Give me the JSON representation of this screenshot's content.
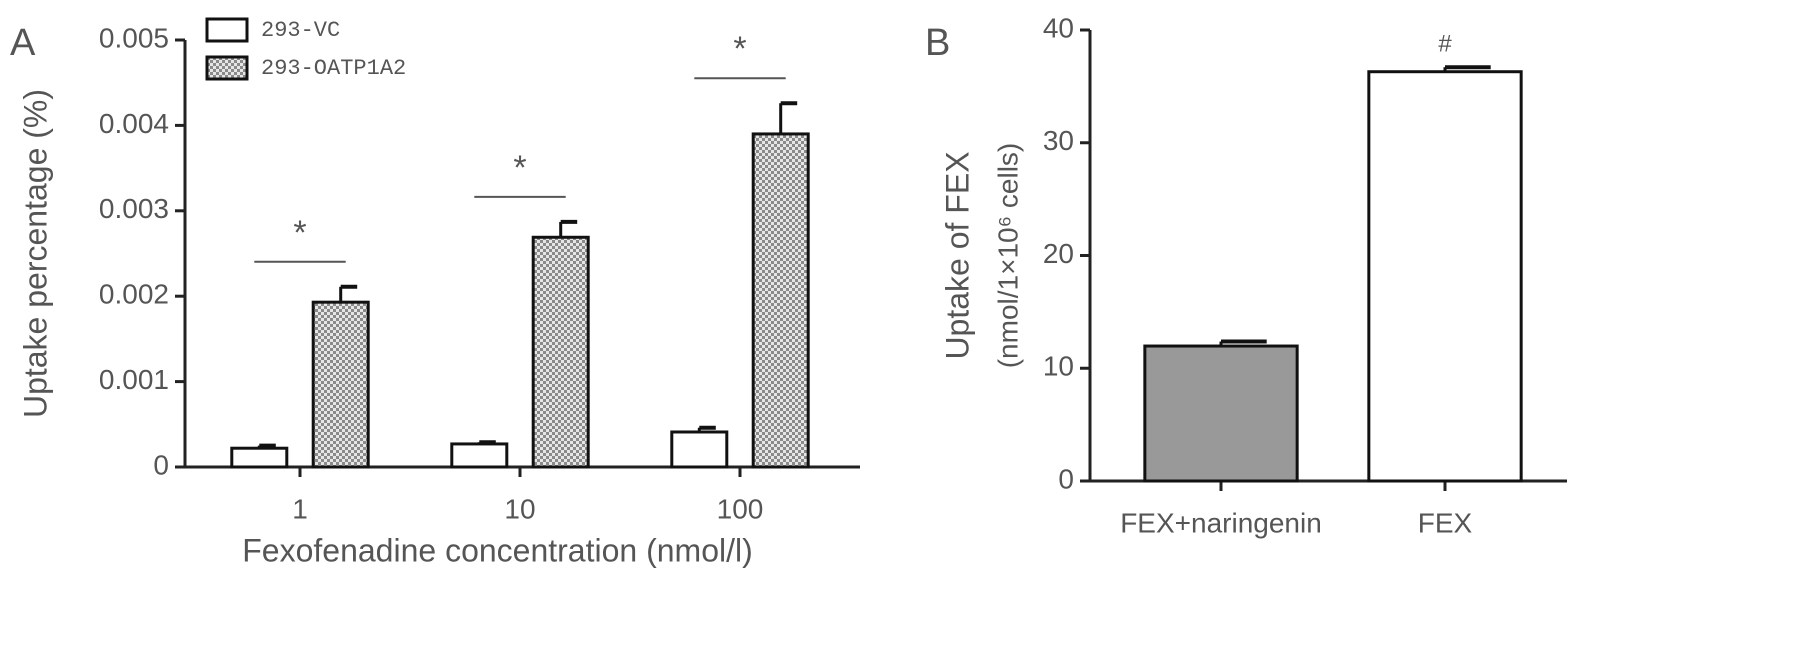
{
  "chart_data": [
    {
      "type": "bar",
      "panel_label": "A",
      "ylabel": "Uptake percentage (%)",
      "xlabel": "Fexofenadine concentration (nmol/l)",
      "categories": [
        "1",
        "10",
        "100"
      ],
      "series": [
        {
          "name": "293-VC",
          "color": "#ffffff",
          "values": [
            0.00022,
            0.00027,
            0.00041
          ],
          "errors": [
            3e-05,
            2e-05,
            5e-05
          ]
        },
        {
          "name": "293-OATP1A2",
          "color": "#c8c8c8",
          "hatch": "checker",
          "values": [
            0.00193,
            0.00269,
            0.0039
          ],
          "errors": [
            0.00018,
            0.00018,
            0.00036
          ]
        }
      ],
      "annotations": [
        "*",
        "*",
        "*"
      ],
      "ylim": [
        0,
        0.005
      ],
      "yticks": [
        0,
        0.001,
        0.002,
        0.003,
        0.004,
        0.005
      ],
      "legend": "upper left"
    },
    {
      "type": "bar",
      "panel_label": "B",
      "ylabel": [
        "Uptake of FEX",
        "(nmol/1×10⁶ cells)"
      ],
      "categories": [
        "FEX+naringenin",
        "FEX"
      ],
      "values": [
        11.97,
        36.3
      ],
      "errors": [
        0.4,
        0.4
      ],
      "colors": [
        "#999999",
        "#ffffff"
      ],
      "annotations": [
        null,
        "#"
      ],
      "ylim": [
        0,
        40
      ],
      "yticks": [
        0,
        10,
        20,
        30,
        40
      ]
    }
  ]
}
